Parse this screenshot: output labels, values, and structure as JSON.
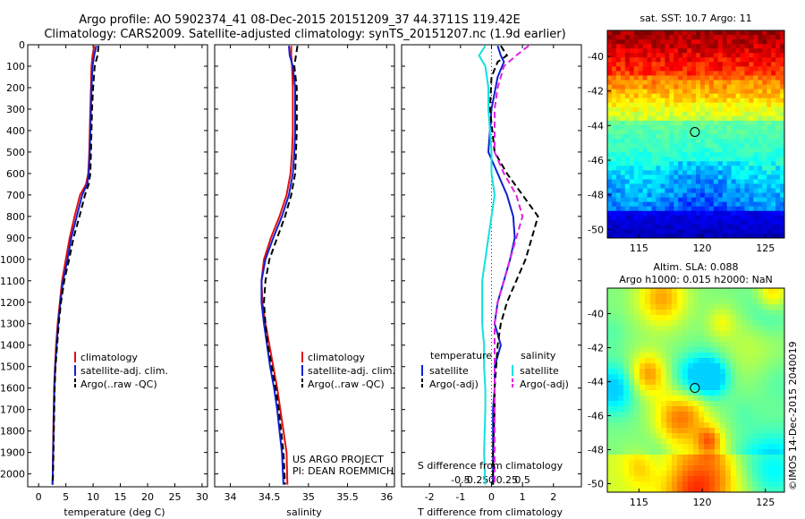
{
  "header": {
    "line1": "Argo profile: AO 5902374_41 08-Dec-2015 20151209_37 44.3711S 119.42E",
    "line2": "Climatology: CARS2009. Satellite-adjusted climatology: synTS_20151207.nc (1.9d earlier)"
  },
  "colors": {
    "climatology": "#e01010",
    "satellite": "#1020d0",
    "argo": "#000000",
    "satellite_salinity": "#10e0e0",
    "argo_salinity": "#e020e0"
  },
  "chart_data": [
    {
      "type": "line",
      "id": "temperature",
      "xlabel": "temperature (deg C)",
      "ylabel": "",
      "xlim": [
        -2,
        31
      ],
      "ylim": [
        2060,
        0
      ],
      "xticks": [
        0,
        5,
        10,
        15,
        20,
        25,
        30
      ],
      "yticks": [
        0,
        100,
        200,
        300,
        400,
        500,
        600,
        700,
        800,
        900,
        1000,
        1100,
        1200,
        1300,
        1400,
        1500,
        1600,
        1700,
        1800,
        1900,
        2000
      ],
      "legend_position": "lower-middle",
      "series": [
        {
          "name": "climatology",
          "color": "#e01010",
          "style": "solid",
          "x": [
            10.2,
            9.9,
            9.7,
            9.6,
            9.5,
            9.4,
            9.3,
            9.1,
            8.7,
            7.6,
            6.6,
            5.7,
            5.0,
            4.3,
            3.9,
            3.5,
            3.2,
            3.0,
            2.85,
            2.7,
            2.6,
            2.55
          ],
          "y": [
            5,
            50,
            100,
            200,
            300,
            400,
            500,
            600,
            650,
            700,
            800,
            900,
            1000,
            1100,
            1200,
            1300,
            1400,
            1500,
            1600,
            1800,
            2000,
            2050
          ]
        },
        {
          "name": "satellite-adj. clim.",
          "color": "#1020d0",
          "style": "solid",
          "x": [
            10.6,
            10.2,
            9.9,
            9.7,
            9.6,
            9.5,
            9.4,
            9.2,
            8.9,
            8.0,
            7.0,
            6.0,
            5.3,
            4.5,
            4.0,
            3.6,
            3.3,
            3.05,
            2.9,
            2.75,
            2.6,
            2.55
          ],
          "y": [
            5,
            50,
            100,
            200,
            300,
            400,
            500,
            600,
            650,
            700,
            800,
            900,
            1000,
            1100,
            1200,
            1300,
            1400,
            1500,
            1600,
            1800,
            2000,
            2050
          ]
        },
        {
          "name": "Argo(..raw -QC)",
          "color": "#000000",
          "style": "dashed",
          "x": [
            11.0,
            10.8,
            10.3,
            10.0,
            9.8,
            9.7,
            9.6,
            9.5,
            9.2,
            8.5,
            7.5,
            6.4,
            5.6,
            4.7,
            4.1,
            3.7,
            3.4,
            3.1,
            2.95,
            2.8,
            2.65,
            2.6
          ],
          "y": [
            5,
            50,
            100,
            200,
            300,
            400,
            500,
            600,
            650,
            700,
            800,
            900,
            1000,
            1100,
            1200,
            1300,
            1400,
            1500,
            1600,
            1800,
            2000,
            2050
          ]
        }
      ]
    },
    {
      "type": "line",
      "id": "salinity",
      "xlabel": "salinity",
      "ylabel": "",
      "xlim": [
        33.8,
        36.1
      ],
      "ylim": [
        2060,
        0
      ],
      "xticks": [
        34,
        34.5,
        35,
        35.5,
        36
      ],
      "legend_position": "lower-middle",
      "annotation": [
        "US ARGO PROJECT",
        "PI: DEAN ROEMMICH"
      ],
      "series": [
        {
          "name": "climatology",
          "color": "#e01010",
          "style": "solid",
          "x": [
            34.78,
            34.78,
            34.79,
            34.8,
            34.8,
            34.79,
            34.77,
            34.72,
            34.63,
            34.52,
            34.43,
            34.4,
            34.41,
            34.45,
            34.5,
            34.55,
            34.6,
            34.64,
            34.68,
            34.72,
            34.73
          ],
          "y": [
            5,
            50,
            100,
            200,
            400,
            500,
            600,
            700,
            800,
            900,
            1000,
            1100,
            1200,
            1300,
            1400,
            1500,
            1600,
            1700,
            1800,
            1900,
            2050
          ]
        },
        {
          "name": "satellite-adj. clim.",
          "color": "#1020d0",
          "style": "solid",
          "x": [
            34.75,
            34.76,
            34.8,
            34.83,
            34.83,
            34.82,
            34.8,
            34.75,
            34.66,
            34.55,
            34.45,
            34.4,
            34.4,
            34.43,
            34.47,
            34.51,
            34.56,
            34.6,
            34.63,
            34.66,
            34.68
          ],
          "y": [
            5,
            50,
            100,
            200,
            400,
            500,
            600,
            700,
            800,
            900,
            1000,
            1100,
            1200,
            1300,
            1400,
            1500,
            1600,
            1700,
            1800,
            1900,
            2050
          ]
        },
        {
          "name": "Argo(..raw -QC)",
          "color": "#000000",
          "style": "dashed",
          "x": [
            34.86,
            34.84,
            34.82,
            34.85,
            34.85,
            34.84,
            34.83,
            34.78,
            34.7,
            34.6,
            34.5,
            34.45,
            34.43,
            34.45,
            34.48,
            34.53,
            34.58,
            34.62,
            34.65,
            34.68,
            34.7
          ],
          "y": [
            5,
            50,
            100,
            200,
            400,
            500,
            600,
            700,
            800,
            900,
            1000,
            1100,
            1200,
            1300,
            1400,
            1500,
            1600,
            1700,
            1800,
            1900,
            2050
          ]
        }
      ]
    },
    {
      "type": "line",
      "id": "differences",
      "xlabel": "T difference from climatology",
      "x2label": "S difference from climatology",
      "xlim": [
        -2.9,
        2.9
      ],
      "ylim": [
        2060,
        0
      ],
      "xticks": [
        -2,
        -1,
        0,
        1,
        2
      ],
      "x2ticks": [
        "-0.5",
        "-0.25",
        "0",
        "0.25",
        "0.5"
      ],
      "legend_position": "lower",
      "legend_headers": [
        "temperature",
        "salinity"
      ],
      "series": [
        {
          "name": "satellite",
          "group": "temperature",
          "color": "#1020d0",
          "style": "solid",
          "x": [
            0.2,
            0.3,
            0.4,
            0.2,
            0.0,
            -0.1,
            0.2,
            0.5,
            0.7,
            0.75,
            0.6,
            0.4,
            0.2,
            0.1,
            0.3,
            0.1,
            0.1,
            0.05,
            0.05,
            0.05
          ],
          "y": [
            5,
            50,
            80,
            150,
            300,
            500,
            600,
            700,
            800,
            900,
            1000,
            1100,
            1200,
            1300,
            1400,
            1500,
            1600,
            1700,
            1900,
            2050
          ]
        },
        {
          "name": "Argo(-adj)",
          "group": "temperature",
          "color": "#000000",
          "style": "dashed",
          "x": [
            0.3,
            0.5,
            0.2,
            0.0,
            -0.05,
            0.1,
            0.5,
            1.0,
            1.5,
            1.3,
            1.1,
            0.8,
            0.5,
            0.3,
            0.2,
            0.15,
            0.1,
            0.1,
            0.05,
            0.05
          ],
          "y": [
            5,
            50,
            80,
            150,
            300,
            500,
            600,
            700,
            800,
            900,
            1000,
            1100,
            1200,
            1300,
            1400,
            1500,
            1600,
            1700,
            1900,
            2050
          ]
        },
        {
          "name": "satellite",
          "group": "salinity",
          "color": "#10e0e0",
          "style": "solid",
          "x": [
            -0.1,
            -0.2,
            -0.1,
            -0.05,
            -0.05,
            0.0,
            0.0,
            0.05,
            0.0,
            -0.05,
            -0.1,
            -0.15,
            -0.15,
            -0.15,
            -0.12,
            -0.12,
            -0.1,
            -0.1,
            -0.12,
            -0.1
          ],
          "y": [
            5,
            50,
            100,
            200,
            300,
            500,
            600,
            700,
            800,
            900,
            1000,
            1100,
            1200,
            1300,
            1400,
            1500,
            1600,
            1700,
            1900,
            2050
          ]
        },
        {
          "name": "Argo(-adj)",
          "group": "salinity",
          "color": "#e020e0",
          "style": "dashed",
          "x": [
            0.6,
            0.4,
            0.2,
            0.1,
            0.05,
            0.05,
            0.2,
            0.4,
            0.5,
            0.4,
            0.3,
            0.2,
            0.1,
            0.05,
            0.05,
            0.05,
            0.05,
            0.05,
            0.05,
            0.05
          ],
          "y": [
            5,
            50,
            100,
            200,
            300,
            500,
            600,
            700,
            800,
            900,
            1000,
            1100,
            1200,
            1300,
            1400,
            1500,
            1600,
            1700,
            1900,
            2050
          ]
        }
      ]
    },
    {
      "type": "heatmap",
      "id": "sst-map",
      "title": "sat. SST: 10.7 Argo: 11",
      "xlim": [
        112.5,
        126.5
      ],
      "ylim": [
        -50.5,
        -38.5
      ],
      "xticks": [
        115,
        120,
        125
      ],
      "yticks": [
        -40,
        -42,
        -44,
        -46,
        -48,
        -50
      ],
      "marker": {
        "lon": 119.42,
        "lat": -44.37
      }
    },
    {
      "type": "heatmap",
      "id": "sla-map",
      "title": [
        "Altim. SLA: 0.088",
        "Argo h1000: 0.015 h2000: NaN"
      ],
      "xlim": [
        112.5,
        126.5
      ],
      "ylim": [
        -50.5,
        -38.5
      ],
      "xticks": [
        115,
        120,
        125
      ],
      "yticks": [
        -40,
        -42,
        -44,
        -46,
        -48,
        -50
      ],
      "marker": {
        "lon": 119.42,
        "lat": -44.37
      }
    }
  ],
  "side_label": "©IMOS 14-Dec-2015 2040019"
}
